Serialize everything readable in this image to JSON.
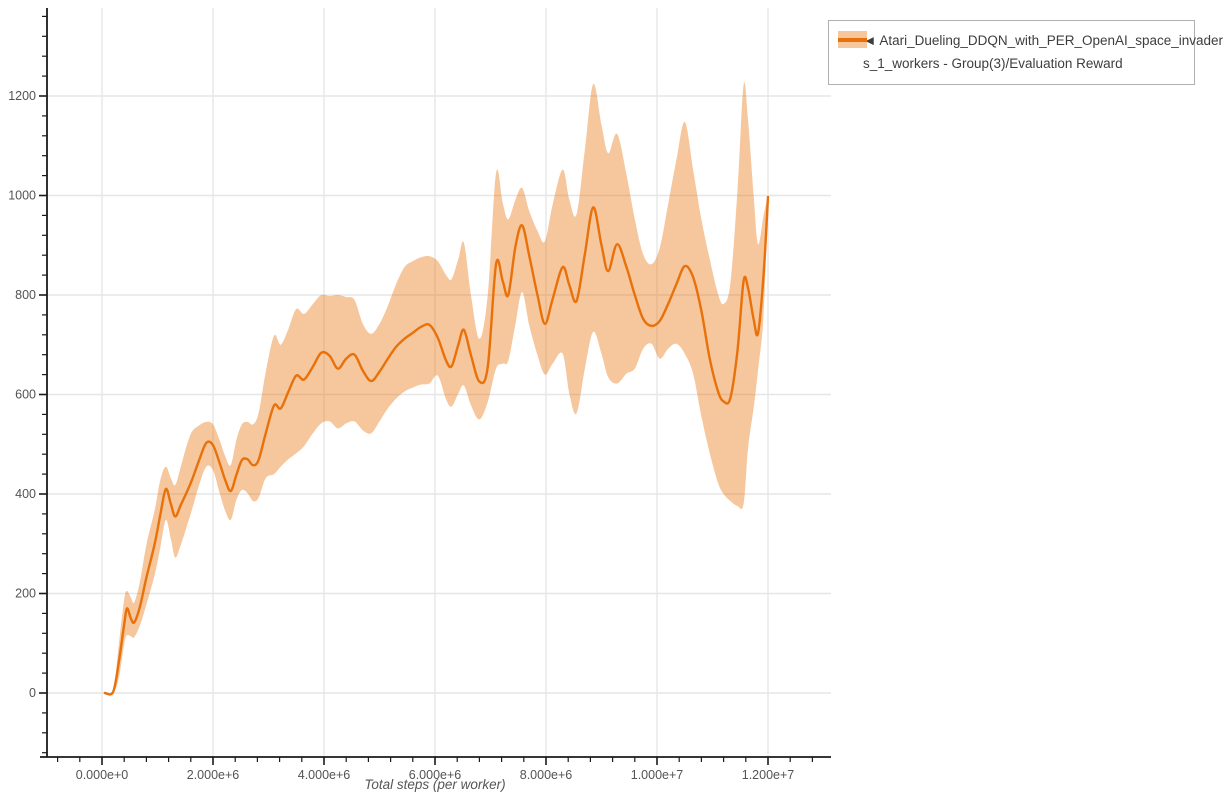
{
  "colors": {
    "line": "#e8710a",
    "band": "rgba(232,113,10,0.40)",
    "grid": "#e6e6e6",
    "axis": "#1a1a1a",
    "tick_label": "#535353",
    "axis_title": "#555555",
    "legend_border": "#b0b0b0",
    "legend_text": "#3d3d3d",
    "background": "#ffffff"
  },
  "legend": {
    "line1": "◄ Atari_Dueling_DDQN_with_PER_OpenAI_space_invader",
    "line2": "s_1_workers - Group(3)/Evaluation Reward",
    "series_full_name": "◄ Atari_Dueling_DDQN_with_PER_OpenAI_space_invaders_1_workers - Group(3)/Evaluation Reward"
  },
  "chart_data": {
    "type": "line",
    "title": "",
    "xlabel": "Total steps (per worker)",
    "ylabel": "",
    "grid": true,
    "legend_position": "top-right",
    "xlim": [
      -1100000,
      13100000
    ],
    "ylim": [
      -129,
      1377
    ],
    "x_tick_values": [
      0,
      2000000,
      4000000,
      6000000,
      8000000,
      10000000,
      12000000
    ],
    "x_tick_labels": [
      "0.000e+0",
      "2.000e+6",
      "4.000e+6",
      "6.000e+6",
      "8.000e+6",
      "1.000e+7",
      "1.200e+7"
    ],
    "x_minor_step": 400000,
    "y_tick_values": [
      0,
      200,
      400,
      600,
      800,
      1000,
      1200
    ],
    "y_tick_labels": [
      "0",
      "200",
      "400",
      "600",
      "800",
      "1000",
      "1200"
    ],
    "y_minor_step": 40,
    "series": [
      {
        "name": "Atari_Dueling_DDQN_with_PER_OpenAI_space_invaders_1_workers - Group(3)/Evaluation Reward",
        "has_band": true,
        "x": [
          50000,
          200000,
          300000,
          400000,
          450000,
          520000,
          580000,
          680000,
          800000,
          950000,
          1050000,
          1150000,
          1240000,
          1320000,
          1420000,
          1520000,
          1620000,
          1750000,
          1880000,
          2000000,
          2120000,
          2220000,
          2320000,
          2420000,
          2520000,
          2620000,
          2720000,
          2820000,
          2950000,
          3100000,
          3220000,
          3360000,
          3500000,
          3640000,
          3800000,
          3950000,
          4100000,
          4250000,
          4400000,
          4550000,
          4700000,
          4850000,
          5000000,
          5150000,
          5300000,
          5450000,
          5600000,
          5750000,
          5900000,
          6050000,
          6200000,
          6300000,
          6420000,
          6520000,
          6650000,
          6800000,
          6950000,
          7100000,
          7220000,
          7320000,
          7450000,
          7570000,
          7700000,
          7850000,
          7980000,
          8120000,
          8300000,
          8420000,
          8550000,
          8700000,
          8850000,
          9000000,
          9120000,
          9280000,
          9450000,
          9600000,
          9750000,
          9900000,
          10050000,
          10200000,
          10350000,
          10500000,
          10650000,
          10800000,
          10950000,
          11100000,
          11200000,
          11320000,
          11450000,
          11560000,
          11640000,
          11740000,
          11820000,
          11920000,
          12000000
        ],
        "mean": [
          0,
          2,
          60,
          138,
          170,
          150,
          142,
          172,
          232,
          300,
          358,
          410,
          380,
          355,
          378,
          402,
          428,
          468,
          503,
          498,
          462,
          428,
          406,
          438,
          468,
          470,
          458,
          468,
          522,
          578,
          572,
          606,
          638,
          630,
          656,
          684,
          678,
          652,
          672,
          680,
          648,
          627,
          646,
          672,
          696,
          712,
          724,
          736,
          740,
          714,
          668,
          657,
          700,
          730,
          678,
          626,
          655,
          862,
          828,
          800,
          898,
          940,
          878,
          798,
          742,
          792,
          856,
          820,
          788,
          882,
          976,
          900,
          848,
          902,
          856,
          800,
          752,
          738,
          748,
          782,
          822,
          858,
          836,
          768,
          672,
          606,
          586,
          592,
          688,
          828,
          814,
          752,
          723,
          840,
          997
        ],
        "lo": [
          0,
          2,
          28,
          98,
          116,
          114,
          112,
          135,
          178,
          238,
          292,
          348,
          310,
          272,
          298,
          332,
          368,
          418,
          455,
          448,
          402,
          366,
          348,
          388,
          408,
          402,
          386,
          392,
          432,
          440,
          455,
          470,
          482,
          496,
          522,
          542,
          546,
          532,
          542,
          546,
          528,
          522,
          546,
          572,
          592,
          606,
          614,
          620,
          622,
          638,
          590,
          576,
          602,
          618,
          578,
          550,
          585,
          652,
          662,
          668,
          742,
          806,
          738,
          678,
          640,
          662,
          682,
          602,
          562,
          652,
          726,
          682,
          635,
          622,
          642,
          652,
          692,
          702,
          672,
          692,
          702,
          682,
          642,
          556,
          482,
          422,
          400,
          386,
          376,
          380,
          492,
          572,
          648,
          760,
          995
        ],
        "hi": [
          0,
          2,
          95,
          188,
          205,
          192,
          182,
          222,
          298,
          368,
          428,
          455,
          432,
          418,
          455,
          495,
          525,
          538,
          545,
          540,
          508,
          476,
          458,
          508,
          540,
          545,
          540,
          562,
          645,
          718,
          700,
          732,
          772,
          762,
          782,
          800,
          798,
          800,
          796,
          790,
          742,
          722,
          742,
          778,
          822,
          856,
          868,
          876,
          878,
          868,
          840,
          832,
          872,
          905,
          798,
          712,
          800,
          1045,
          985,
          952,
          992,
          1015,
          968,
          928,
          908,
          982,
          1052,
          992,
          962,
          1092,
          1224,
          1142,
          1085,
          1124,
          1042,
          952,
          882,
          862,
          895,
          982,
          1072,
          1148,
          1052,
          952,
          872,
          802,
          782,
          822,
          1010,
          1222,
          1152,
          1002,
          902,
          960,
          999
        ]
      }
    ]
  }
}
